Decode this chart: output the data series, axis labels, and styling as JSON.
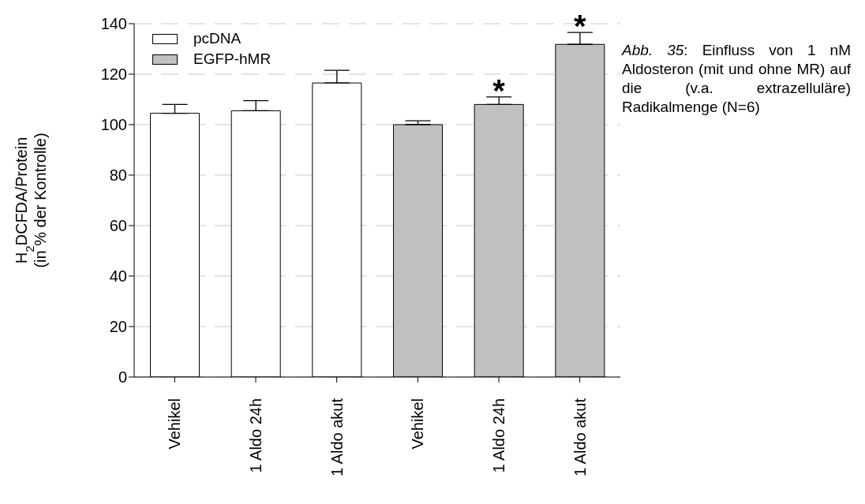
{
  "chart_data": {
    "type": "bar",
    "ylabel": "H$_{2}$DCFDA/Protein\n(in % der Kontrolle)",
    "categories": [
      "Vehikel",
      "1 Aldo 24h",
      "1 Aldo akut",
      "Vehikel",
      "1 Aldo 24h",
      "1 Aldo akut"
    ],
    "series": [
      {
        "name": "pcDNA",
        "color": "#ffffff",
        "values": [
          104.5,
          105.5,
          116.5,
          null,
          null,
          null
        ],
        "errors": [
          [
            104.5,
            108
          ],
          [
            105.5,
            109.5
          ],
          [
            116.5,
            121.5
          ],
          null,
          null,
          null
        ]
      },
      {
        "name": "EGFP-hMR",
        "color": "#c0c0c0",
        "values": [
          null,
          null,
          null,
          100,
          108,
          131.8
        ],
        "errors": [
          null,
          null,
          null,
          [
            100,
            101.5
          ],
          [
            108,
            111
          ],
          [
            131.8,
            136.5
          ]
        ]
      }
    ],
    "stacked": true,
    "ylim": [
      0,
      140
    ],
    "yticks": [
      0,
      20,
      40,
      60,
      80,
      100,
      120,
      140
    ],
    "grid": "y",
    "legend": "top left",
    "annotations": [
      "*",
      "*",
      "Abb. 35: Einfluss von 1 nM Aldosteron (mit und ohne MR) auf die (v.a. extrazelluläre) Radikalmenge (N=6)"
    ]
  }
}
